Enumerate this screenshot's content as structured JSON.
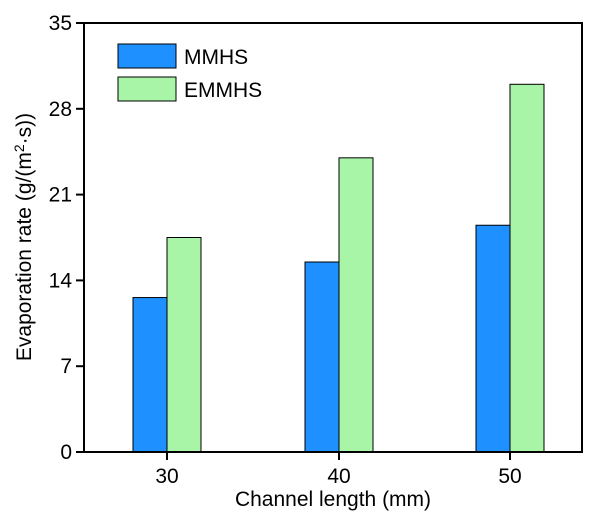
{
  "chart_data": {
    "type": "bar",
    "title": "",
    "xlabel": "Channel length (mm)",
    "ylabel_main": "Evaporation rate (g/(m",
    "ylabel_sup": "2",
    "ylabel_tail": "·s))",
    "categories": [
      "30",
      "40",
      "50"
    ],
    "ylim": [
      0,
      35
    ],
    "yticks": [
      0,
      7,
      14,
      21,
      28,
      35
    ],
    "ytick_labels": [
      "0",
      "7",
      "14",
      "21",
      "28",
      "35"
    ],
    "series": [
      {
        "name": "MMHS",
        "values": [
          12.6,
          15.5,
          18.5
        ],
        "color": "#1E90FF"
      },
      {
        "name": "EMMHS",
        "values": [
          17.5,
          24.0,
          30.0
        ],
        "color": "#A8F5A8"
      }
    ],
    "legend_position": "top-left",
    "grid": false
  }
}
